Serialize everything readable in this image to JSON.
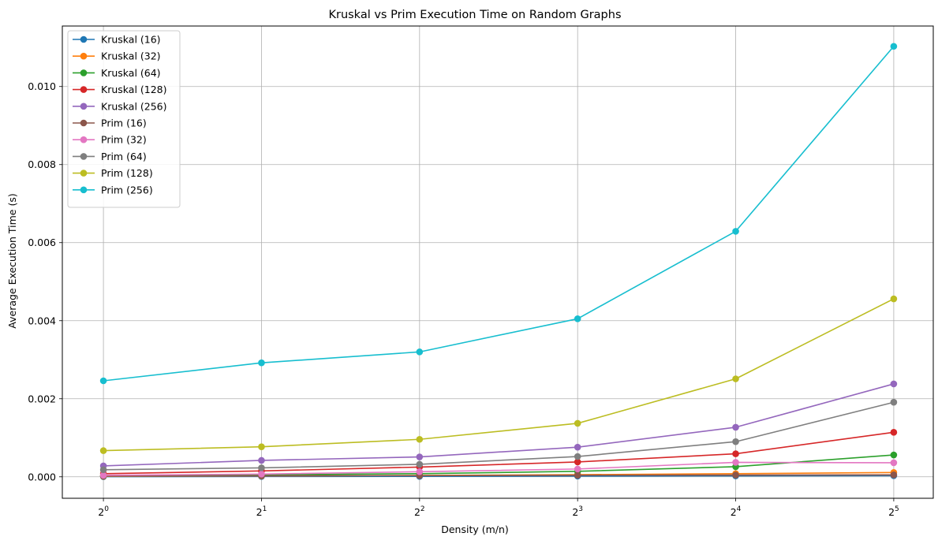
{
  "chart_data": {
    "type": "line",
    "title": "Kruskal vs Prim Execution Time on Random Graphs",
    "xlabel": "Density (m/n)",
    "ylabel": "Average Execution Time (s)",
    "x_scale": "log2",
    "x": [
      1,
      2,
      4,
      8,
      16,
      32
    ],
    "x_tick_labels": [
      {
        "base": "2",
        "exp": "0"
      },
      {
        "base": "2",
        "exp": "1"
      },
      {
        "base": "2",
        "exp": "2"
      },
      {
        "base": "2",
        "exp": "3"
      },
      {
        "base": "2",
        "exp": "4"
      },
      {
        "base": "2",
        "exp": "5"
      }
    ],
    "xlim_exp": [
      -0.26,
      5.25
    ],
    "ylim": [
      -0.00055,
      0.01155
    ],
    "y_ticks": [
      0.0,
      0.002,
      0.004,
      0.006,
      0.008,
      0.01
    ],
    "y_tick_labels": [
      "0.000",
      "0.002",
      "0.004",
      "0.006",
      "0.008",
      "0.010"
    ],
    "grid": true,
    "legend_position": "top-left",
    "series": [
      {
        "name": "Kruskal (16)",
        "color": "#1f77b4",
        "values": [
          5e-06,
          8e-06,
          1.2e-05,
          1.8e-05,
          2.5e-05,
          3e-05
        ]
      },
      {
        "name": "Kruskal (32)",
        "color": "#ff7f0e",
        "values": [
          1.5e-05,
          2.2e-05,
          3.5e-05,
          5.5e-05,
          8e-05,
          0.00011
        ]
      },
      {
        "name": "Kruskal (64)",
        "color": "#2ca02c",
        "values": [
          3e-05,
          5e-05,
          8e-05,
          0.00014,
          0.00026,
          0.00056
        ]
      },
      {
        "name": "Kruskal (128)",
        "color": "#d62728",
        "values": [
          8e-05,
          0.00015,
          0.00025,
          0.00038,
          0.00059,
          0.00114
        ]
      },
      {
        "name": "Kruskal (256)",
        "color": "#9467bd",
        "values": [
          0.00028,
          0.00042,
          0.00051,
          0.00076,
          0.00127,
          0.00238
        ]
      },
      {
        "name": "Prim (16)",
        "color": "#8c564b",
        "values": [
          2e-05,
          2.5e-05,
          3e-05,
          4e-05,
          4.5e-05,
          5e-05
        ]
      },
      {
        "name": "Prim (32)",
        "color": "#e377c2",
        "values": [
          4e-05,
          7e-05,
          0.00013,
          0.0002,
          0.00037,
          0.00036
        ]
      },
      {
        "name": "Prim (64)",
        "color": "#7f7f7f",
        "values": [
          0.00018,
          0.00023,
          0.00032,
          0.00052,
          0.0009,
          0.00191
        ]
      },
      {
        "name": "Prim (128)",
        "color": "#bcbd22",
        "values": [
          0.00067,
          0.00077,
          0.00096,
          0.00137,
          0.00251,
          0.00456
        ]
      },
      {
        "name": "Prim (256)",
        "color": "#17becf",
        "values": [
          0.00246,
          0.00292,
          0.0032,
          0.00405,
          0.00629,
          0.01103
        ]
      }
    ]
  }
}
